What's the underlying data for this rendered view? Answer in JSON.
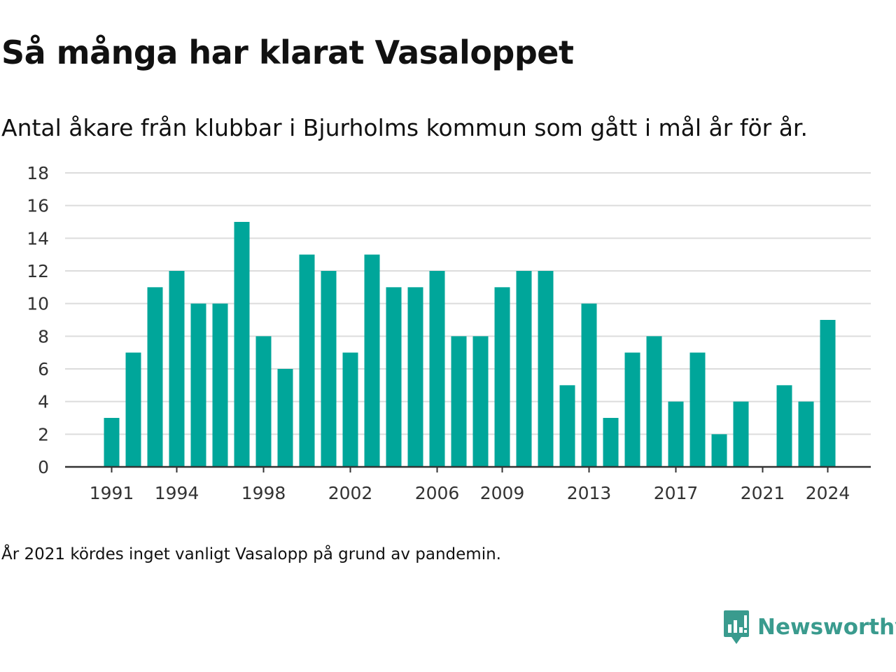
{
  "title": "Så många har klarat Vasaloppet",
  "subtitle": "Antal åkare från klubbar i Bjurholms kommun som gått i mål år för år.",
  "footnote": "År 2021 kördes inget vanligt Vasalopp på grund av pandemin.",
  "logo": {
    "text": "Newsworthy",
    "icon": "newsworthy-bar-chart-icon"
  },
  "colors": {
    "bar": "#00a69a",
    "grid": "#dcdcdc",
    "axis": "#333333",
    "text": "#333333",
    "brand": "#3a9b8e"
  },
  "chart_data": {
    "type": "bar",
    "title": "Så många har klarat Vasaloppet",
    "xlabel": "",
    "ylabel": "",
    "categories": [
      1991,
      1992,
      1993,
      1994,
      1995,
      1996,
      1997,
      1998,
      1999,
      2000,
      2001,
      2002,
      2003,
      2004,
      2005,
      2006,
      2007,
      2008,
      2009,
      2010,
      2011,
      2012,
      2013,
      2014,
      2015,
      2016,
      2017,
      2018,
      2019,
      2020,
      2021,
      2022,
      2023,
      2024
    ],
    "values": [
      3,
      7,
      11,
      12,
      10,
      10,
      15,
      8,
      6,
      13,
      12,
      7,
      13,
      11,
      11,
      12,
      8,
      8,
      11,
      12,
      12,
      5,
      10,
      3,
      7,
      8,
      4,
      7,
      2,
      4,
      0,
      5,
      4,
      9
    ],
    "x_tick_labels": [
      "1991",
      "1994",
      "1998",
      "2002",
      "2006",
      "2009",
      "2013",
      "2017",
      "2021",
      "2024"
    ],
    "y_ticks": [
      0,
      2,
      4,
      6,
      8,
      10,
      12,
      14,
      16,
      18
    ],
    "ylim": [
      0,
      18
    ],
    "grid": true,
    "legend": "none"
  }
}
